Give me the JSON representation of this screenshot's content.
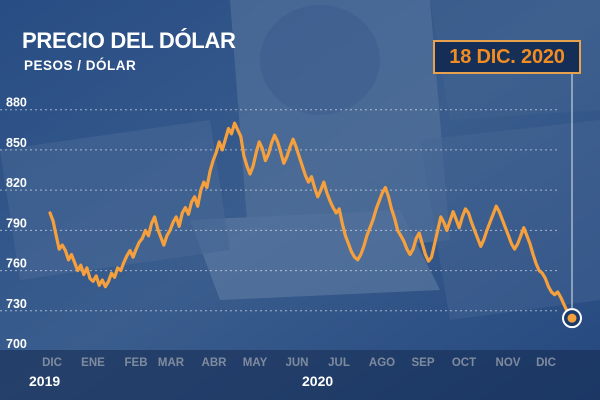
{
  "header": {
    "title": "PRECIO DEL DÓLAR",
    "subtitle": "PESOS / DÓLAR",
    "date_badge": "18 DIC. 2020"
  },
  "colors": {
    "line": "#f5a03c",
    "badge_text": "#f08c22",
    "overlay": "#1c3d73",
    "text": "#ffffff"
  },
  "chart_data": {
    "type": "line",
    "title": "PRECIO DEL DÓLAR",
    "ylabel": "PESOS / DÓLAR",
    "ylim": [
      700,
      885
    ],
    "yticks": [
      880,
      850,
      820,
      790,
      760,
      730,
      700
    ],
    "x_tick_labels": [
      "DIC",
      "ENE",
      "FEB",
      "MAR",
      "ABR",
      "MAY",
      "JUN",
      "JUL",
      "AGO",
      "SEP",
      "OCT",
      "NOV",
      "DIC"
    ],
    "year_labels": [
      "2019",
      "2020"
    ],
    "grid": true,
    "series": [
      {
        "values": [
          803,
          797,
          786,
          776,
          779,
          775,
          768,
          772,
          766,
          760,
          764,
          757,
          762,
          754,
          752,
          756,
          749,
          753,
          748,
          752,
          758,
          755,
          762,
          760,
          766,
          771,
          775,
          770,
          776,
          781,
          784,
          790,
          786,
          795,
          800,
          791,
          785,
          779,
          786,
          790,
          796,
          800,
          793,
          803,
          807,
          802,
          811,
          815,
          808,
          820,
          826,
          822,
          834,
          842,
          848,
          856,
          850,
          858,
          866,
          862,
          870,
          865,
          860,
          846,
          838,
          832,
          838,
          848,
          856,
          851,
          842,
          847,
          855,
          861,
          856,
          848,
          840,
          845,
          852,
          858,
          852,
          845,
          838,
          831,
          826,
          830,
          822,
          815,
          820,
          826,
          818,
          812,
          807,
          803,
          806,
          795,
          786,
          780,
          774,
          770,
          768,
          772,
          778,
          786,
          792,
          798,
          806,
          812,
          818,
          822,
          815,
          806,
          799,
          790,
          786,
          782,
          776,
          772,
          776,
          784,
          788,
          780,
          772,
          767,
          770,
          780,
          790,
          800,
          796,
          790,
          797,
          804,
          798,
          792,
          800,
          806,
          803,
          796,
          790,
          784,
          778,
          783,
          790,
          796,
          802,
          808,
          804,
          798,
          792,
          786,
          780,
          776,
          780,
          786,
          792,
          786,
          780,
          772,
          765,
          760,
          758,
          754,
          748,
          744,
          742,
          744,
          740,
          735,
          730,
          726
        ]
      }
    ]
  }
}
